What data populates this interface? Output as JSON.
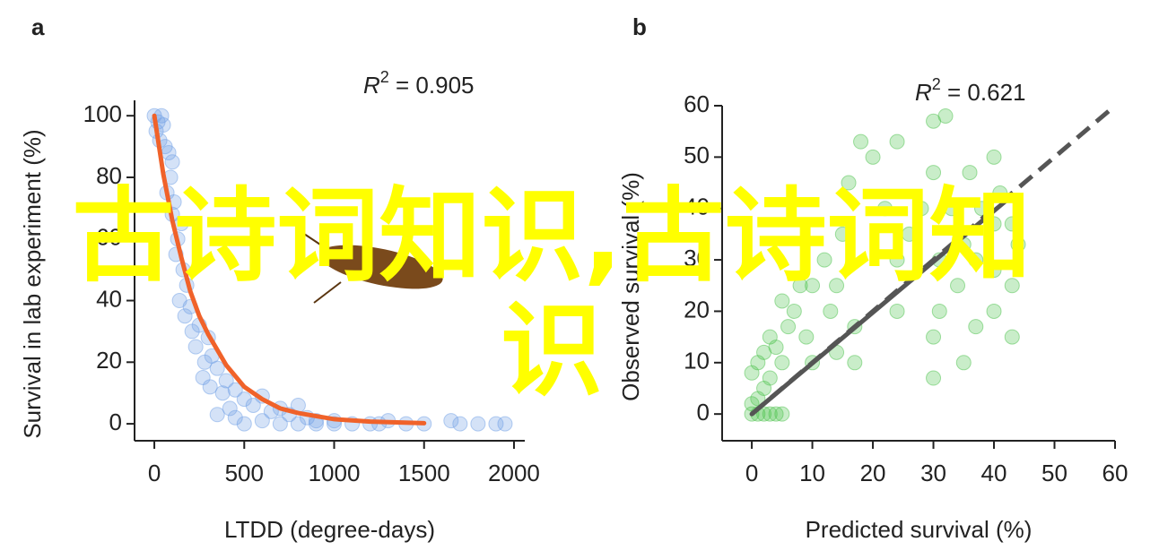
{
  "chart_data": [
    {
      "type": "scatter",
      "title": "a",
      "x_label": "LTDD (degree-days)",
      "y_label": "Survival in lab experiment (%)",
      "r2_symbol": "R",
      "r2_power": "2",
      "r2_text": " = 0.905",
      "xlim": [
        -110,
        2060
      ],
      "ylim": [
        -5.5,
        105
      ],
      "xticks": [
        0,
        500,
        1000,
        1500,
        2000
      ],
      "yticks": [
        0,
        20,
        40,
        60,
        80,
        100
      ],
      "series": [
        {
          "style": "points",
          "color": "#6f9fe6",
          "x": [
            0,
            20,
            10,
            40,
            50,
            30,
            60,
            80,
            100,
            90,
            70,
            110,
            100,
            150,
            130,
            120,
            160,
            180,
            140,
            200,
            170,
            210,
            250,
            230,
            300,
            280,
            320,
            350,
            270,
            310,
            400,
            380,
            450,
            500,
            420,
            550,
            600,
            650,
            700,
            750,
            800,
            850,
            900,
            350,
            450,
            500,
            600,
            700,
            800,
            900,
            1000,
            1100,
            1200,
            1300,
            1400,
            1500,
            1650,
            1700,
            1800,
            1950,
            1900,
            1000,
            1250
          ],
          "values": [
            100,
            98,
            95,
            100,
            97,
            92,
            90,
            88,
            85,
            80,
            75,
            72,
            68,
            65,
            60,
            55,
            50,
            45,
            40,
            38,
            35,
            30,
            32,
            25,
            28,
            20,
            22,
            18,
            15,
            12,
            14,
            10,
            11,
            8,
            5,
            6,
            9,
            4,
            5,
            3,
            6,
            2,
            1,
            3,
            2,
            0,
            1,
            0,
            0,
            0,
            1,
            0,
            0,
            1,
            0,
            0,
            1,
            0,
            0,
            0,
            0,
            0,
            0
          ]
        },
        {
          "style": "solid",
          "color": "#f0622a",
          "x": [
            0,
            50,
            100,
            150,
            200,
            250,
            300,
            400,
            500,
            600,
            700,
            800,
            1000,
            1200,
            1500
          ],
          "values": [
            100,
            81,
            66,
            54,
            43,
            35,
            29,
            19,
            12,
            8,
            5,
            3.5,
            1.5,
            0.7,
            0.2
          ]
        }
      ]
    },
    {
      "type": "scatter",
      "title": "b",
      "x_label": "Predicted survival (%)",
      "y_label": "Observed survival (%)",
      "r2_symbol": "R",
      "r2_power": "2",
      "r2_text": " = 0.621",
      "xlim": [
        -4.9,
        60
      ],
      "ylim": [
        -5.2,
        60
      ],
      "xticks": [
        0,
        10,
        20,
        30,
        40,
        50,
        60
      ],
      "yticks": [
        0,
        10,
        20,
        30,
        40,
        50,
        60
      ],
      "series": [
        {
          "style": "points",
          "color": "#4cc24c",
          "x": [
            0,
            1,
            2,
            3,
            4,
            5,
            0,
            1,
            2,
            3,
            0,
            1,
            2,
            3,
            4,
            5,
            6,
            5,
            7,
            8,
            9,
            10,
            10,
            12,
            13,
            14,
            14,
            15,
            16,
            17,
            17,
            18,
            20,
            22,
            24,
            24,
            24,
            26,
            28,
            30,
            30,
            31,
            31,
            30,
            30,
            32,
            33,
            34,
            35,
            35,
            36,
            37,
            37,
            38,
            40,
            40,
            40,
            40,
            41,
            43,
            43,
            43,
            44
          ],
          "values": [
            0,
            0,
            0,
            0,
            0,
            0,
            2,
            3,
            5,
            7,
            8,
            10,
            12,
            15,
            13,
            10,
            17,
            22,
            20,
            25,
            15,
            10,
            25,
            30,
            20,
            25,
            12,
            35,
            45,
            17,
            10,
            53,
            50,
            40,
            30,
            20,
            53,
            35,
            40,
            57,
            47,
            30,
            20,
            15,
            7,
            58,
            40,
            25,
            33,
            10,
            47,
            30,
            17,
            40,
            50,
            37,
            28,
            20,
            43,
            37,
            25,
            15,
            33
          ]
        },
        {
          "style": "dashed",
          "color": "#555555",
          "x": [
            0,
            60
          ],
          "values": [
            0,
            60
          ]
        },
        {
          "style": "solid",
          "color": "#555555",
          "x": [
            0,
            43
          ],
          "values": [
            0,
            42.5
          ]
        }
      ]
    }
  ],
  "overlay_text": "古诗词知识,古诗词知识"
}
